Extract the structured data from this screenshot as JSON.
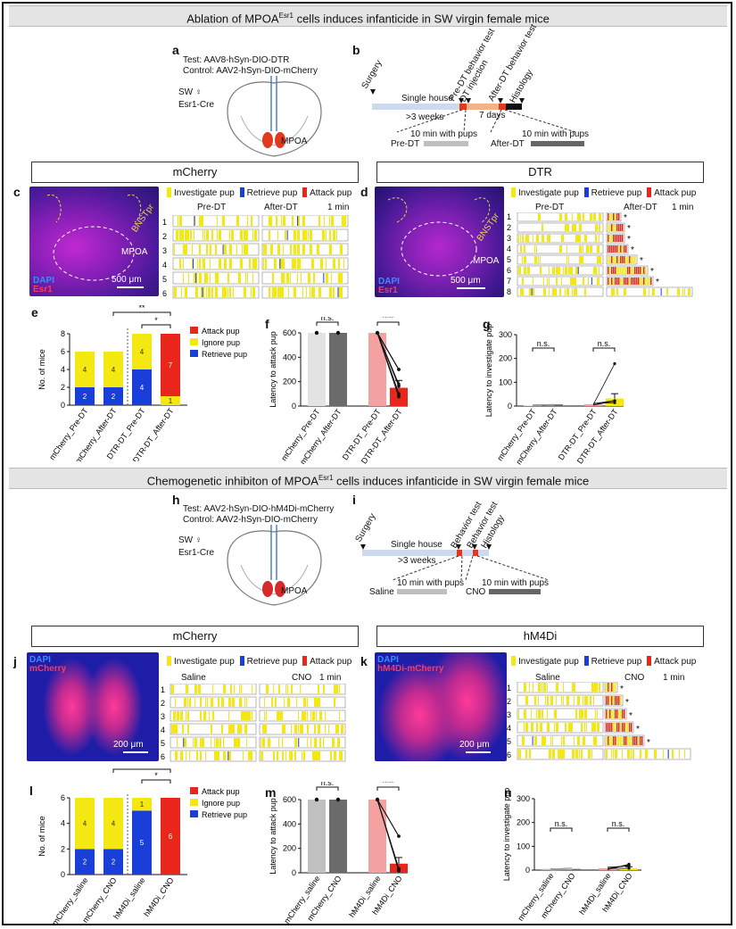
{
  "colors": {
    "investigate": "#f5e812",
    "retrieve": "#1a3ed8",
    "attack": "#e8261b",
    "ignore": "#f5e812"
  },
  "section1": {
    "title": "Ablation of  MPOA",
    "sup": "Esr1",
    "title_rest": " cells induces infanticide in SW virgin female mice"
  },
  "section2": {
    "title": "Chemogenetic inhibiton of MPOA",
    "sup": "Esr1",
    "title_rest": " cells induces infanticide in SW virgin female mice"
  },
  "labels": {
    "a": "a",
    "b": "b",
    "c": "c",
    "d": "d",
    "e": "e",
    "f": "f",
    "g": "g",
    "h": "h",
    "i": "i",
    "j": "j",
    "k": "k",
    "l": "l",
    "m": "m",
    "n": "n"
  },
  "panel_a": {
    "test": "Test: AAV8-hSyn-DIO-DTR",
    "control": "Control: AAV2-hSyn-DIO-mCherry",
    "sw": "SW ♀",
    "cre": "Esr1-Cre",
    "region": "MPOA"
  },
  "panel_b": {
    "surgery": "Surgery",
    "single": "Single house",
    "weeks": ">3 weeks",
    "pre": "Pre-DT behavior test",
    "dtinj": "DT injection",
    "after": "After-DT behavior test",
    "histo": "Histology",
    "days": "7 days",
    "pups1": "10 min with pups",
    "pups2": "10 min with pups",
    "preDT": "Pre-DT",
    "afterDT": "After-DT"
  },
  "panel_c": {
    "header": "mCherry",
    "investigate": "Investigate pup",
    "retrieve": "Retrieve pup",
    "attack": "Attack pup",
    "pre": "Pre-DT",
    "after": "After-DT",
    "scale": "1 min",
    "dapi": "DAPI",
    "esr1": "Esr1",
    "bnst": "BNSTpr",
    "mpoa": "MPOA",
    "scalebar": "500 μm",
    "rows": [
      "1",
      "2",
      "3",
      "4",
      "5",
      "6"
    ]
  },
  "panel_d": {
    "header": "DTR",
    "investigate": "Investigate pup",
    "retrieve": "Retrieve pup",
    "attack": "Attack pup",
    "pre": "Pre-DT",
    "after": "After-DT",
    "scale": "1 min",
    "dapi": "DAPI",
    "esr1": "Esr1",
    "bnst": "BNSTpr",
    "mpoa": "MPOA",
    "scalebar": "500 μm",
    "rows": [
      "1",
      "2",
      "3",
      "4",
      "5",
      "6",
      "7",
      "8"
    ],
    "star": "*"
  },
  "panel_h": {
    "test": "Test: AAV2-hSyn-DIO-hM4Di-mCherry",
    "control": "Control: AAV2-hSyn-DIO-mCherry",
    "sw": "SW ♀",
    "cre": "Esr1-Cre",
    "region": "MPOA"
  },
  "panel_i": {
    "surgery": "Surgery",
    "single": "Single house",
    "weeks": ">3 weeks",
    "bt1": "Behavior test",
    "bt2": "Behavior test",
    "histo": "Histology",
    "pups1": "10 min with pups",
    "pups2": "10 min with pups",
    "saline": "Saline",
    "cno": "CNO"
  },
  "panel_j": {
    "header": "mCherry",
    "investigate": "Investigate pup",
    "retrieve": "Retrieve pup",
    "attack": "Attack pup",
    "saline": "Saline",
    "cno": "CNO",
    "scale": "1 min",
    "dapi": "DAPI",
    "label": "mCherry",
    "scalebar": "200 μm",
    "rows": [
      "1",
      "2",
      "3",
      "4",
      "5",
      "6"
    ]
  },
  "panel_k": {
    "header": "hM4Di",
    "investigate": "Investigate pup",
    "retrieve": "Retrieve pup",
    "attack": "Attack pup",
    "saline": "Saline",
    "cno": "CNO",
    "scale": "1 min",
    "dapi": "DAPI",
    "label": "hM4Di-mCherry",
    "scalebar": "200 μm",
    "rows": [
      "1",
      "2",
      "3",
      "4",
      "5",
      "6"
    ],
    "star": "*"
  },
  "chart_data": [
    {
      "id": "e",
      "type": "bar",
      "stacked": true,
      "categories": [
        "mCherry_Pre-DT",
        "mCherry_After-DT",
        "DTR-DT_Pre-DT",
        "DTR-DT_After-DT"
      ],
      "series": [
        {
          "name": "Retrieve pup",
          "values": [
            2,
            2,
            4,
            0
          ]
        },
        {
          "name": "Ignore pup",
          "values": [
            4,
            4,
            4,
            1
          ]
        },
        {
          "name": "Attack pup",
          "values": [
            0,
            0,
            0,
            7
          ]
        }
      ],
      "ylabel": "No. of mice",
      "ylim": [
        0,
        8
      ],
      "yticks": [
        "0",
        "2",
        "4",
        "6",
        "8"
      ],
      "legend": [
        "Attack pup",
        "Ignore pup",
        "Retrieve pup"
      ],
      "sig": [
        "**",
        "*"
      ]
    },
    {
      "id": "f",
      "type": "bar",
      "categories": [
        "mCherry_Pre-DT",
        "mCherry_After-DT",
        "DTR-DT_Pre-DT",
        "DTR-DT_After-DT"
      ],
      "values": [
        600,
        600,
        600,
        150
      ],
      "ylabel": "Latency to attack pup",
      "ylim": [
        0,
        600
      ],
      "yticks": [
        "0",
        "200",
        "400",
        "600"
      ],
      "sig": [
        "n.s.",
        "****"
      ]
    },
    {
      "id": "g",
      "type": "bar",
      "categories": [
        "mCherry_Pre-DT",
        "mCherry_After-DT",
        "DTR-DT_Pre-DT",
        "DTR-DT_After-DT"
      ],
      "values": [
        4,
        7,
        8,
        32
      ],
      "ylabel": "Latency to investigate pup",
      "ylim": [
        0,
        300
      ],
      "yticks": [
        "0",
        "100",
        "200",
        "300"
      ],
      "sig": [
        "n.s.",
        "n.s."
      ]
    },
    {
      "id": "l",
      "type": "bar",
      "stacked": true,
      "categories": [
        "mCherry_saline",
        "mCherry_CNO",
        "hM4Di_saline",
        "hM4Di_CNO"
      ],
      "series": [
        {
          "name": "Retrieve pup",
          "values": [
            2,
            2,
            5,
            0
          ]
        },
        {
          "name": "Ignore pup",
          "values": [
            4,
            4,
            1,
            0
          ]
        },
        {
          "name": "Attack pup",
          "values": [
            0,
            0,
            0,
            6
          ]
        }
      ],
      "ylabel": "No. of mice",
      "ylim": [
        0,
        6
      ],
      "yticks": [
        "0",
        "2",
        "4",
        "6"
      ],
      "legend": [
        "Attack pup",
        "Ignore pup",
        "Retrieve pup"
      ],
      "sig": [
        "**",
        "*"
      ]
    },
    {
      "id": "m",
      "type": "bar",
      "categories": [
        "mCherry_saline",
        "mCherry_CNO",
        "hM4Di_saline",
        "hM4Di_CNO"
      ],
      "values": [
        600,
        600,
        600,
        75
      ],
      "ylabel": "Latency to attack pup",
      "ylim": [
        0,
        600
      ],
      "yticks": [
        "0",
        "200",
        "400",
        "600"
      ],
      "sig": [
        "n.s.",
        "****"
      ]
    },
    {
      "id": "n",
      "type": "bar",
      "categories": [
        "mCherry_saline",
        "mCherry_CNO",
        "hM4Di_saline",
        "hM4Di_CNO"
      ],
      "values": [
        5,
        5,
        8,
        8
      ],
      "ylabel": "Latency to investigate pup",
      "ylim": [
        0,
        300
      ],
      "yticks": [
        "0",
        "100",
        "200",
        "300"
      ],
      "sig": [
        "n.s.",
        "n.s."
      ]
    }
  ]
}
